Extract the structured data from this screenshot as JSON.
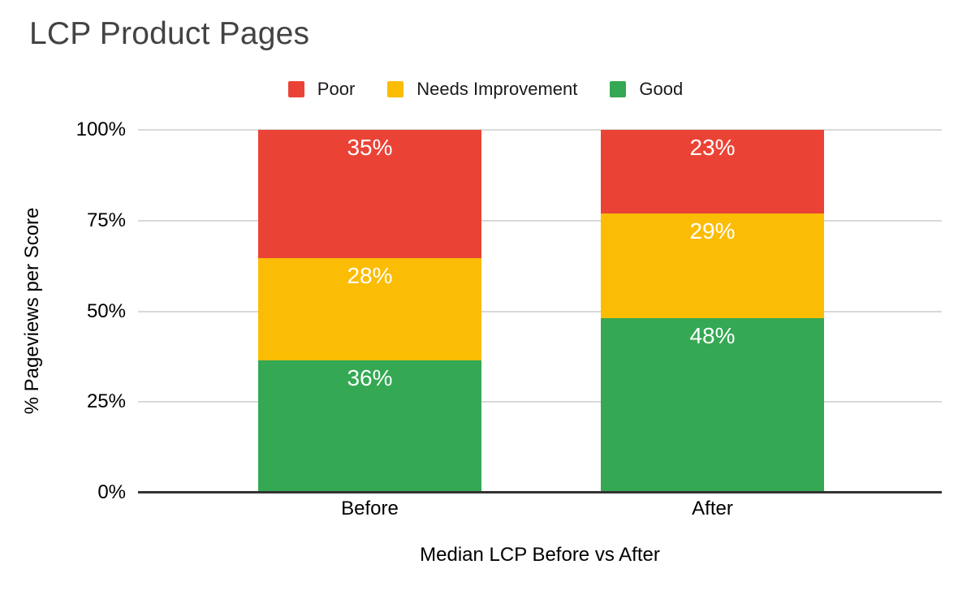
{
  "chart_data": {
    "type": "bar",
    "stacked": true,
    "percent_stacked": true,
    "title": "LCP Product Pages",
    "categories": [
      "Before",
      "After"
    ],
    "series": [
      {
        "name": "Poor",
        "color": "#EA4335",
        "values": [
          35,
          23
        ]
      },
      {
        "name": "Needs Improvement",
        "color": "#FBBC04",
        "values": [
          28,
          29
        ]
      },
      {
        "name": "Good",
        "color": "#34A853",
        "values": [
          36,
          48
        ]
      }
    ],
    "xlabel": "Median LCP Before vs After",
    "ylabel": "% Pageviews per Score",
    "y_ticks": [
      "100%",
      "75%",
      "50%",
      "25%",
      "0%"
    ],
    "ylim": [
      0,
      100
    ],
    "grid": true,
    "legend_position": "top",
    "colors": {
      "title_text": "#434343",
      "axis_text": "#000000",
      "data_label_text": "#FFFFFF",
      "gridline": "#D9D9D9",
      "axis_line": "#333333",
      "background": "#FFFFFF"
    }
  }
}
